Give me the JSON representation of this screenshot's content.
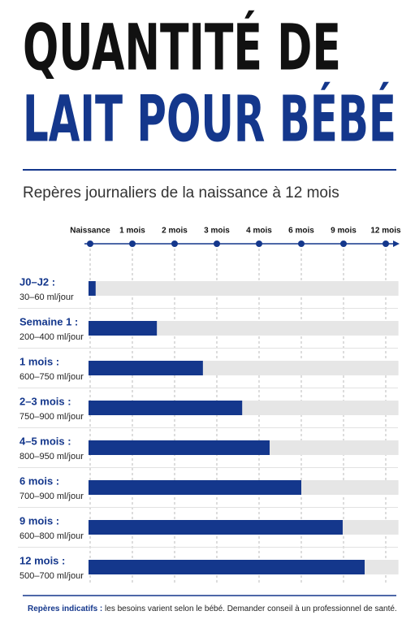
{
  "chart_data": {
    "type": "bar",
    "title": [
      "QUANTITÉ DE",
      "LAIT POUR BÉBÉ"
    ],
    "subtitle": "Repères journaliers de la naissance à 12 mois",
    "categories": [
      "J0–J2 :",
      "Semaine 1 :",
      "1 mois :",
      "2–3 mois :",
      "4–5 mois :",
      "6 mois :",
      "9 mois :",
      "12 mois :"
    ],
    "category_details": [
      "30–60 ml/jour",
      "200–400 ml/jour",
      "600–750 ml/jour",
      "750–900 ml/jour",
      "800–950 ml/jour",
      "700–900 ml/jour",
      "600–800 ml/jour",
      "500–700 ml/jour"
    ],
    "values": [
      0.13,
      1.58,
      2.67,
      3.6,
      4.25,
      5.0,
      5.98,
      6.5
    ],
    "xlim": [
      0,
      7.3
    ],
    "xticks": [
      {
        "value": 0,
        "label": "Naissance"
      },
      {
        "value": 1,
        "label": "1 mois"
      },
      {
        "value": 2,
        "label": "2 mois"
      },
      {
        "value": 3,
        "label": "3 mois"
      },
      {
        "value": 4,
        "label": "4 mois"
      },
      {
        "value": 5,
        "label": "6 mois"
      },
      {
        "value": 6,
        "label": "9 mois"
      },
      {
        "value": 7,
        "label": "12 mois"
      }
    ],
    "color": "#14378c",
    "track_color": "#e6e6e6",
    "title_colors": [
      "#111111",
      "#14378c"
    ],
    "grid": true,
    "footnote": [
      "Repères indicatifs :",
      "les besoins varient selon le bébé. Demander conseil à un professionnel de santé."
    ]
  }
}
